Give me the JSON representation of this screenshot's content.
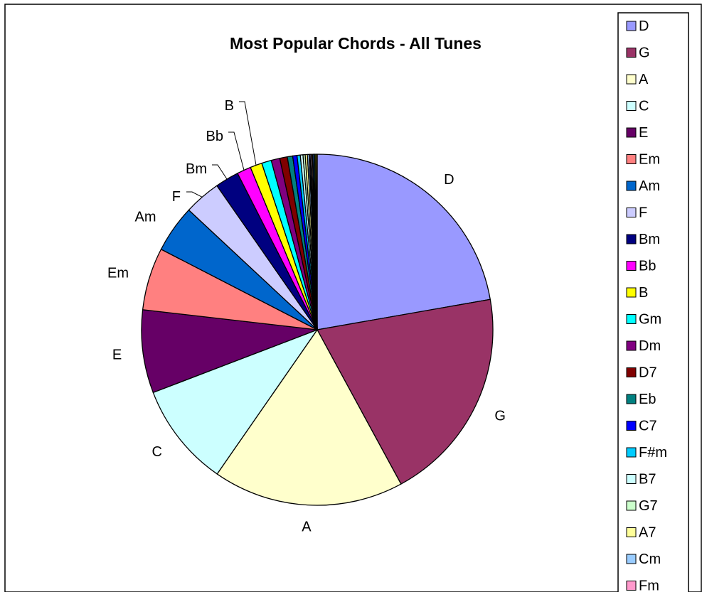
{
  "chart_data": {
    "type": "pie",
    "title": "Most Popular Chords - All Tunes",
    "legend_position": "right",
    "start_angle_deg": 0,
    "direction": "clockwise",
    "slices": [
      {
        "label": "D",
        "value": 22.4,
        "color": "#9999ff",
        "show_label": true
      },
      {
        "label": "G",
        "value": 20.0,
        "color": "#993366",
        "show_label": true
      },
      {
        "label": "A",
        "value": 17.7,
        "color": "#ffffcc",
        "show_label": true
      },
      {
        "label": "C",
        "value": 9.6,
        "color": "#ccffff",
        "show_label": true
      },
      {
        "label": "E",
        "value": 7.7,
        "color": "#660066",
        "show_label": true
      },
      {
        "label": "Em",
        "value": 5.8,
        "color": "#ff8080",
        "show_label": true
      },
      {
        "label": "Am",
        "value": 4.4,
        "color": "#0066cc",
        "show_label": true
      },
      {
        "label": "F",
        "value": 3.4,
        "color": "#ccccff",
        "show_label": true
      },
      {
        "label": "Bm",
        "value": 2.2,
        "color": "#000080",
        "show_label": true
      },
      {
        "label": "Bb",
        "value": 1.3,
        "color": "#ff00ff",
        "show_label": true
      },
      {
        "label": "B",
        "value": 1.1,
        "color": "#ffff00",
        "show_label": true
      },
      {
        "label": "Gm",
        "value": 0.9,
        "color": "#00ffff",
        "show_label": false
      },
      {
        "label": "Dm",
        "value": 0.8,
        "color": "#800080",
        "show_label": false
      },
      {
        "label": "D7",
        "value": 0.7,
        "color": "#800000",
        "show_label": false
      },
      {
        "label": "Eb",
        "value": 0.5,
        "color": "#008080",
        "show_label": false
      },
      {
        "label": "C7",
        "value": 0.4,
        "color": "#0000ff",
        "show_label": false
      },
      {
        "label": "F#m",
        "value": 0.3,
        "color": "#00ccff",
        "show_label": false
      },
      {
        "label": "B7",
        "value": 0.25,
        "color": "#ccffff",
        "show_label": false
      },
      {
        "label": "G7",
        "value": 0.2,
        "color": "#ccffcc",
        "show_label": false
      },
      {
        "label": "A7",
        "value": 0.2,
        "color": "#ffff99",
        "show_label": false
      },
      {
        "label": "Cm",
        "value": 0.15,
        "color": "#99ccff",
        "show_label": false
      },
      {
        "label": "Fm",
        "value": 0.1,
        "color": "#ff99cc",
        "show_label": false
      }
    ],
    "hidden_tail_slices": 6,
    "hidden_tail_value_total": 0.65,
    "hidden_tail_colors": [
      "#cc99ff",
      "#ffcc99",
      "#3366ff",
      "#33cccc",
      "#99cc00",
      "#ffcc00"
    ]
  }
}
